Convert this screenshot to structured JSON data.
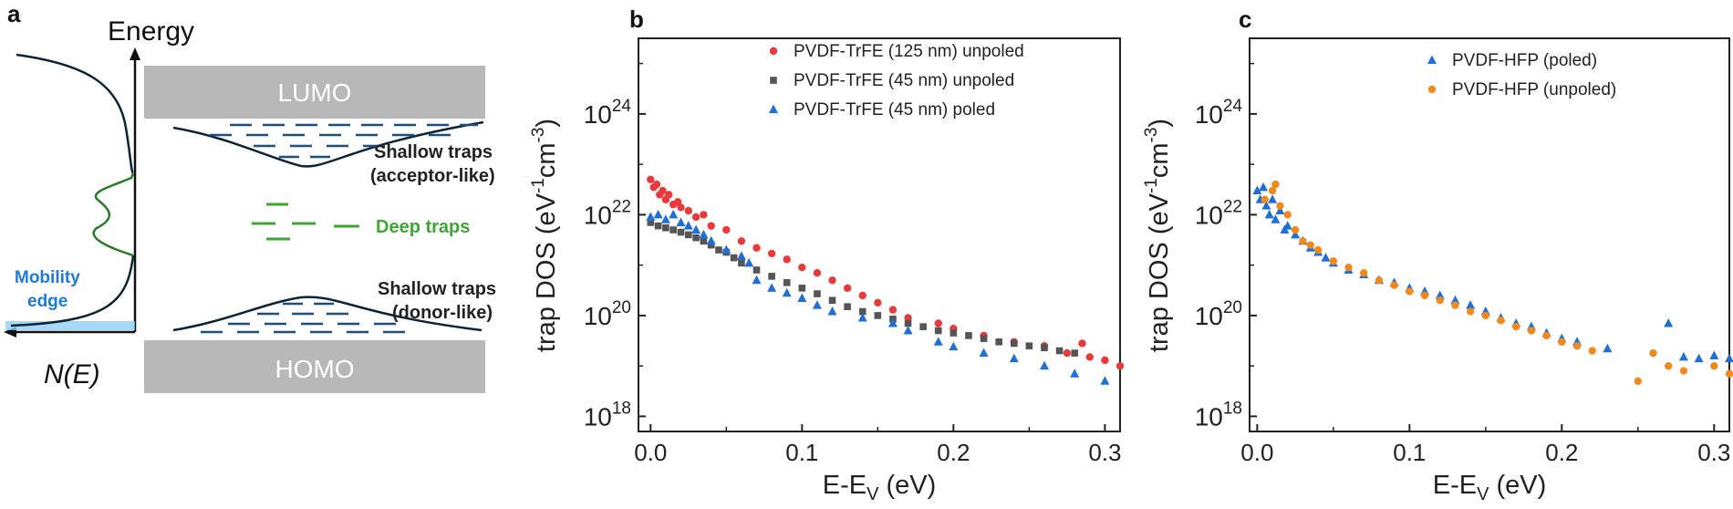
{
  "panel_a": {
    "label": "a",
    "y_axis_label": "Energy",
    "x_axis_label": "N(E)",
    "lumo": "LUMO",
    "homo": "HOMO",
    "shallow_acceptor_line1": "Shallow traps",
    "shallow_acceptor_line2": "(acceptor-like)",
    "deep": "Deep traps",
    "shallow_donor_line1": "Shallow traps",
    "shallow_donor_line2": "(donor-like)",
    "mobility_line1": "Mobility",
    "mobility_line2": "edge",
    "colors": {
      "band": "#b8b8b8",
      "trap": "#1f4e79",
      "deep": "#3fa535",
      "mobility": "#1e7bd6",
      "curve": "#0d2436"
    }
  },
  "chart_data": [
    {
      "type": "scatter",
      "panel": "b",
      "xlabel_main": "E-E",
      "xlabel_sub": "V",
      "xlabel_end": " (eV)",
      "ylabel_main": "trap DOS (eV",
      "ylabel_sup1": "-1",
      "ylabel_mid": "cm",
      "ylabel_sup2": "-3",
      "ylabel_end": ")",
      "x_ticks": [
        "0.0",
        "0.1",
        "0.2",
        "0.3"
      ],
      "y_tick_exponents": [
        "18",
        "20",
        "22",
        "24"
      ],
      "y_tick_base": "10",
      "xlim": [
        -0.008,
        0.31
      ],
      "ylim_log10": [
        17.7,
        25.5
      ],
      "y_scale": "log",
      "legend_position": "top-right",
      "series": [
        {
          "name": "PVDF-TrFE (125 nm) unpoled",
          "marker": "circle",
          "color": "#e83a3a",
          "x": [
            0.0,
            0.002,
            0.004,
            0.006,
            0.008,
            0.01,
            0.012,
            0.015,
            0.018,
            0.02,
            0.025,
            0.03,
            0.035,
            0.04,
            0.05,
            0.06,
            0.07,
            0.08,
            0.09,
            0.1,
            0.11,
            0.12,
            0.13,
            0.14,
            0.15,
            0.16,
            0.17,
            0.19,
            0.2,
            0.22,
            0.24,
            0.26,
            0.275,
            0.285,
            0.29,
            0.3,
            0.31
          ],
          "y": [
            5e+22,
            3.5e+22,
            4e+22,
            2.5e+22,
            3e+22,
            2e+22,
            2.5e+22,
            1.6e+22,
            1.8e+22,
            1.4e+22,
            1.2e+22,
            9e+21,
            1e+22,
            6e+21,
            5e+21,
            3e+21,
            2.2e+21,
            1.7e+21,
            1.3e+21,
            9e+20,
            7e+20,
            5e+20,
            3.5e+20,
            2.5e+20,
            1.8e+20,
            1.3e+20,
            9e+19,
            7e+19,
            5.5e+19,
            4e+19,
            3e+19,
            2.5e+19,
            1.8e+19,
            2.8e+19,
            1.5e+19,
            1.3e+19,
            1e+19
          ]
        },
        {
          "name": "PVDF-TrFE (45 nm) unpoled",
          "marker": "square",
          "color": "#555555",
          "x": [
            0.0,
            0.005,
            0.01,
            0.015,
            0.02,
            0.025,
            0.03,
            0.035,
            0.04,
            0.045,
            0.05,
            0.055,
            0.06,
            0.07,
            0.08,
            0.09,
            0.1,
            0.11,
            0.12,
            0.13,
            0.14,
            0.15,
            0.16,
            0.17,
            0.18,
            0.19,
            0.2,
            0.21,
            0.22,
            0.23,
            0.24,
            0.25,
            0.26,
            0.27,
            0.28
          ],
          "y": [
            7e+21,
            6e+21,
            5.5e+21,
            5e+21,
            4.5e+21,
            4e+21,
            3.5e+21,
            3e+21,
            2.5e+21,
            2e+21,
            1.8e+21,
            1.4e+21,
            1.1e+21,
            8e+20,
            6e+20,
            4.5e+20,
            3.5e+20,
            2.7e+20,
            2e+20,
            1.5e+20,
            1.2e+20,
            1e+20,
            8.5e+19,
            7e+19,
            6e+19,
            5e+19,
            4.5e+19,
            4e+19,
            3.5e+19,
            3e+19,
            2.8e+19,
            2.5e+19,
            2.3e+19,
            2e+19,
            1.8e+19
          ]
        },
        {
          "name": "PVDF-TrFE (45 nm) poled",
          "marker": "triangle",
          "color": "#1f6fd6",
          "x": [
            0.0,
            0.005,
            0.01,
            0.015,
            0.02,
            0.025,
            0.03,
            0.035,
            0.04,
            0.05,
            0.06,
            0.065,
            0.07,
            0.08,
            0.09,
            0.1,
            0.11,
            0.12,
            0.14,
            0.16,
            0.17,
            0.19,
            0.2,
            0.22,
            0.24,
            0.26,
            0.28,
            0.3
          ],
          "y": [
            9e+21,
            1e+22,
            8e+21,
            1e+22,
            7e+21,
            6e+21,
            5e+21,
            4e+21,
            3e+21,
            2e+21,
            1.5e+21,
            1.1e+21,
            5e+20,
            3.5e+20,
            2.8e+20,
            2.2e+20,
            1.6e+20,
            1.2e+20,
            9e+19,
            7e+19,
            5e+19,
            3e+19,
            2.4e+19,
            1.8e+19,
            1.4e+19,
            1e+19,
            7e+18,
            5e+18
          ]
        }
      ]
    },
    {
      "type": "scatter",
      "panel": "c",
      "xlabel_main": "E-E",
      "xlabel_sub": "V",
      "xlabel_end": " (eV)",
      "ylabel_main": "trap DOS (eV",
      "ylabel_sup1": "-1",
      "ylabel_mid": "cm",
      "ylabel_sup2": "-3",
      "ylabel_end": ")",
      "x_ticks": [
        "0.0",
        "0.1",
        "0.2",
        "0.3"
      ],
      "y_tick_exponents": [
        "18",
        "20",
        "22",
        "24"
      ],
      "y_tick_base": "10",
      "xlim": [
        -0.005,
        0.31
      ],
      "ylim_log10": [
        17.7,
        25.5
      ],
      "y_scale": "log",
      "legend_position": "top-right",
      "series": [
        {
          "name": "PVDF-HFP (poled)",
          "marker": "triangle",
          "color": "#1f6fd6",
          "x": [
            0.0,
            0.002,
            0.004,
            0.006,
            0.008,
            0.01,
            0.012,
            0.015,
            0.018,
            0.02,
            0.025,
            0.03,
            0.035,
            0.04,
            0.045,
            0.05,
            0.06,
            0.07,
            0.08,
            0.09,
            0.1,
            0.11,
            0.12,
            0.13,
            0.14,
            0.15,
            0.16,
            0.17,
            0.18,
            0.19,
            0.2,
            0.21,
            0.23,
            0.27,
            0.28,
            0.29,
            0.3,
            0.31
          ],
          "y": [
            3e+22,
            2e+22,
            3.5e+22,
            1.5e+22,
            1e+22,
            2e+22,
            8e+21,
            1.2e+22,
            5e+21,
            6e+21,
            4e+21,
            3e+21,
            2.2e+21,
            1.8e+21,
            1.4e+21,
            1.1e+21,
            8e+20,
            6.5e+20,
            5e+20,
            4.5e+20,
            3.5e+20,
            3e+20,
            2.5e+20,
            2e+20,
            1.6e+20,
            1.2e+20,
            9e+19,
            7e+19,
            6e+19,
            4.5e+19,
            3.5e+19,
            3e+19,
            2.2e+19,
            7e+19,
            1.5e+19,
            1.4e+19,
            1.6e+19,
            1.4e+19
          ]
        },
        {
          "name": "PVDF-HFP (unpoled)",
          "marker": "circle",
          "color": "#f18a1c",
          "x": [
            0.005,
            0.01,
            0.012,
            0.015,
            0.02,
            0.025,
            0.03,
            0.035,
            0.04,
            0.05,
            0.06,
            0.07,
            0.08,
            0.09,
            0.1,
            0.11,
            0.12,
            0.13,
            0.14,
            0.15,
            0.16,
            0.17,
            0.18,
            0.19,
            0.2,
            0.21,
            0.22,
            0.25,
            0.26,
            0.27,
            0.28,
            0.3,
            0.31
          ],
          "y": [
            2e+22,
            3e+22,
            4e+22,
            1.5e+22,
            1e+22,
            5e+21,
            3e+21,
            2.5e+21,
            2e+21,
            1.2e+21,
            9e+20,
            7e+20,
            5e+20,
            4e+20,
            3e+20,
            2.5e+20,
            2e+20,
            1.6e+20,
            1.2e+20,
            1e+20,
            8e+19,
            6e+19,
            5e+19,
            4e+19,
            3e+19,
            2.5e+19,
            2e+19,
            5e+18,
            1.8e+19,
            1e+19,
            8e+18,
            1e+19,
            7e+18
          ]
        }
      ]
    }
  ]
}
